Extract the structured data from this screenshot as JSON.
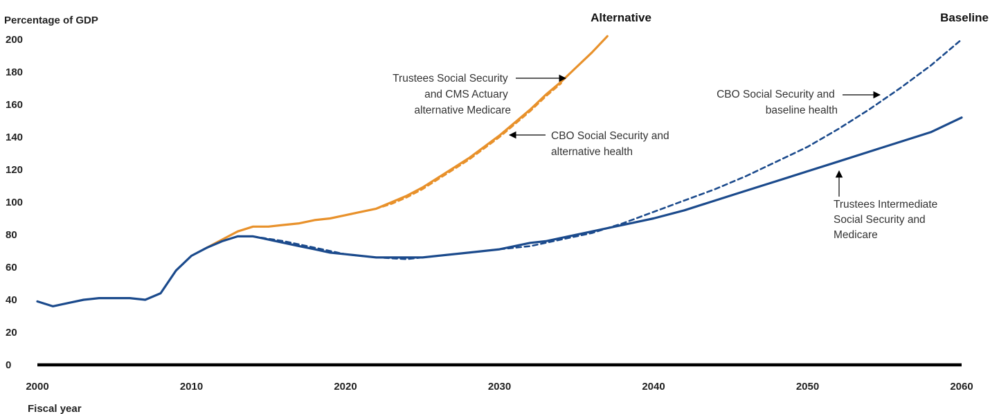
{
  "chart_data": {
    "type": "line",
    "ylabel": "Percentage of GDP",
    "xlabel": "Fiscal year",
    "xlim": [
      2000,
      2060
    ],
    "ylim": [
      0,
      200
    ],
    "xticks": [
      "2000",
      "2010",
      "2020",
      "2030",
      "2040",
      "2050",
      "2060"
    ],
    "yticks": [
      "0",
      "20",
      "40",
      "60",
      "80",
      "100",
      "120",
      "140",
      "160",
      "180",
      "200"
    ],
    "grid": false,
    "colors": {
      "orange": "#e8912b",
      "blue": "#1b4a8c",
      "axis": "#000000"
    },
    "series": [
      {
        "name": "Trustees Social Security and CMS Actuary alternative Medicare",
        "color": "#e8912b",
        "style": "solid",
        "x": [
          2011,
          2012,
          2013,
          2014,
          2015,
          2016,
          2017,
          2018,
          2019,
          2020,
          2021,
          2022,
          2023,
          2024,
          2025,
          2026,
          2027,
          2028,
          2029,
          2030,
          2031,
          2032,
          2033,
          2034,
          2035,
          2036,
          2037
        ],
        "y": [
          72,
          77,
          82,
          85,
          85,
          86,
          87,
          89,
          90,
          92,
          94,
          96,
          100,
          104,
          109,
          115,
          121,
          127,
          134,
          141,
          149,
          157,
          166,
          174,
          183,
          192,
          202
        ]
      },
      {
        "name": "CBO Social Security and alternative health",
        "color": "#e8912b",
        "style": "dashed",
        "x": [
          2011,
          2012,
          2013,
          2014,
          2015,
          2016,
          2017,
          2018,
          2019,
          2020,
          2021,
          2022,
          2023,
          2024,
          2025,
          2026,
          2027,
          2028,
          2029,
          2030,
          2031,
          2032,
          2033,
          2034
        ],
        "y": [
          72,
          77,
          82,
          85,
          85,
          86,
          87,
          89,
          90,
          92,
          94,
          96,
          99,
          103,
          108,
          114,
          120,
          126,
          133,
          140,
          148,
          156,
          165,
          173
        ]
      },
      {
        "name": "CBO Social Security and baseline health",
        "color": "#1b4a8c",
        "style": "dashed",
        "x": [
          2014,
          2016,
          2018,
          2020,
          2022,
          2024,
          2026,
          2028,
          2030,
          2032,
          2034,
          2036,
          2038,
          2040,
          2042,
          2044,
          2046,
          2048,
          2050,
          2052,
          2054,
          2056,
          2058,
          2060
        ],
        "y": [
          79,
          76,
          72,
          68,
          66,
          65,
          67,
          69,
          71,
          73,
          77,
          81,
          87,
          94,
          101,
          108,
          116,
          125,
          134,
          145,
          157,
          170,
          184,
          200
        ]
      },
      {
        "name": "Trustees Intermediate Social Security and Medicare",
        "color": "#1b4a8c",
        "style": "solid",
        "x": [
          2000,
          2001,
          2002,
          2003,
          2004,
          2005,
          2006,
          2007,
          2008,
          2009,
          2010,
          2011,
          2012,
          2013,
          2014,
          2015,
          2016,
          2017,
          2018,
          2019,
          2020,
          2022,
          2024,
          2025,
          2026,
          2028,
          2030,
          2032,
          2033,
          2034,
          2036,
          2038,
          2040,
          2042,
          2044,
          2046,
          2048,
          2050,
          2052,
          2054,
          2056,
          2058,
          2060
        ],
        "y": [
          39,
          36,
          38,
          40,
          41,
          41,
          41,
          40,
          44,
          58,
          67,
          72,
          76,
          79,
          79,
          77,
          75,
          73,
          71,
          69,
          68,
          66,
          66,
          66,
          67,
          69,
          71,
          75,
          76,
          78,
          82,
          86,
          90,
          95,
          101,
          107,
          113,
          119,
          125,
          131,
          137,
          143,
          152
        ]
      }
    ],
    "panel_labels": {
      "alternative": "Alternative",
      "baseline": "Baseline"
    },
    "annotations": {
      "trustees_alt": [
        "Trustees Social Security",
        "and CMS Actuary",
        "alternative Medicare"
      ],
      "cbo_alt": [
        "CBO Social Security and",
        "alternative health"
      ],
      "cbo_base": [
        "CBO Social Security and",
        "baseline health"
      ],
      "trustees_int": [
        "Trustees Intermediate",
        "Social Security and",
        "Medicare"
      ]
    }
  }
}
